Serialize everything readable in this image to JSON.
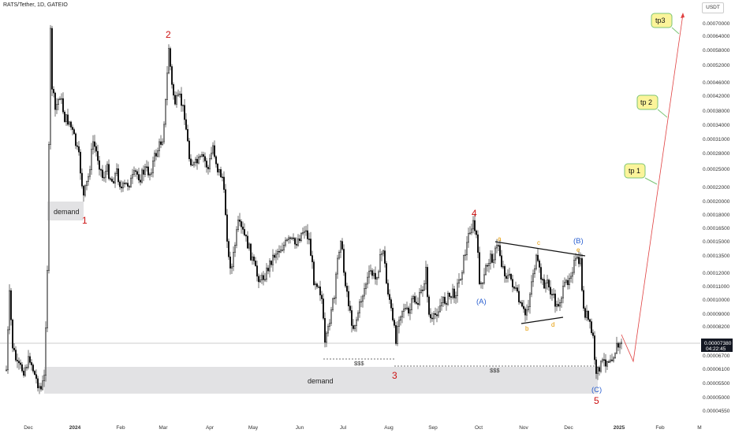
{
  "header": {
    "title": "RATS/Tether, 1D, GATEIO",
    "currency": "USDT"
  },
  "current_price": {
    "price": "0.00007380",
    "countdown": "04:22:45"
  },
  "chart_data": {
    "type": "candlestick",
    "scale": "log",
    "ylim": [
      4.3e-06,
      8.5e-06
    ],
    "y_ticks": [
      "0.00070000",
      "0.00064000",
      "0.00058000",
      "0.00052000",
      "0.00046000",
      "0.00042000",
      "0.00038000",
      "0.00034000",
      "0.00031000",
      "0.00028000",
      "0.00025000",
      "0.00022000",
      "0.00020000",
      "0.00018000",
      "0.00016500",
      "0.00015000",
      "0.00013500",
      "0.00012000",
      "0.00011000",
      "0.00010000",
      "0.00009000",
      "0.00008200",
      "0.00007380",
      "0.00006700",
      "0.00006100",
      "0.00005500",
      "0.00005000",
      "0.00004550"
    ],
    "x_ticks": [
      "Dec",
      "2024",
      "Feb",
      "Mar",
      "Apr",
      "May",
      "Jun",
      "Jul",
      "Aug",
      "Sep",
      "Oct",
      "Nov",
      "Dec",
      "2025",
      "Feb",
      "M"
    ],
    "waves": [
      {
        "label": "1",
        "color": "red"
      },
      {
        "label": "2",
        "color": "red"
      },
      {
        "label": "3",
        "color": "red"
      },
      {
        "label": "4",
        "color": "red"
      },
      {
        "label": "5",
        "color": "red"
      },
      {
        "label": "(A)",
        "color": "blue"
      },
      {
        "label": "(B)",
        "color": "blue"
      },
      {
        "label": "(C)",
        "color": "blue"
      },
      {
        "label": "a",
        "color": "orange"
      },
      {
        "label": "b",
        "color": "orange"
      },
      {
        "label": "c",
        "color": "orange"
      },
      {
        "label": "d",
        "color": "orange"
      },
      {
        "label": "e",
        "color": "orange"
      }
    ],
    "zones": [
      {
        "label": "demand"
      },
      {
        "label": "demand"
      }
    ],
    "liquidity_labels": [
      "$$$",
      "$$$"
    ],
    "targets": [
      "tp 1",
      "tp 2",
      "tp3"
    ],
    "colors": {
      "wave_red": "#cc1010",
      "wave_blue": "#2a5fd0",
      "wave_orange": "#e69a00",
      "projection": "#e04040",
      "tp_fill": "#fbf49a",
      "tp_border": "#7cc576",
      "zone": "#e2e2e4",
      "candle": "#111111"
    }
  }
}
